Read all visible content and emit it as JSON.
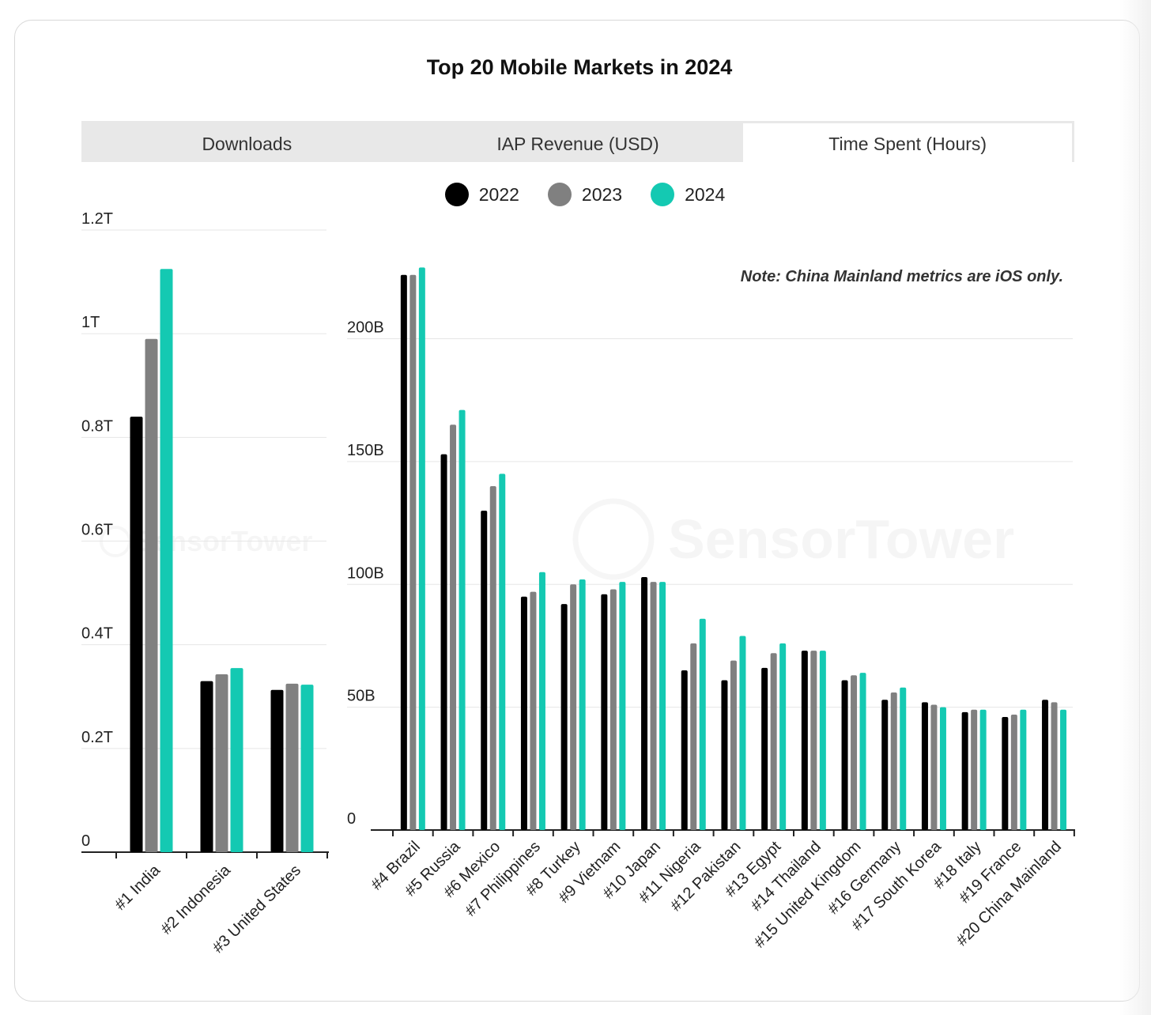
{
  "title": "Top 20 Mobile Markets in 2024",
  "tabs": [
    {
      "label": "Downloads",
      "active": false
    },
    {
      "label": "IAP Revenue (USD)",
      "active": false
    },
    {
      "label": "Time Spent (Hours)",
      "active": true
    }
  ],
  "legend": [
    {
      "label": "2022",
      "color": "#000000"
    },
    {
      "label": "2023",
      "color": "#808080"
    },
    {
      "label": "2024",
      "color": "#14c9b2"
    }
  ],
  "note": "Note: China Mainland metrics are iOS only.",
  "watermark": "SensorTower",
  "chart_data": [
    {
      "type": "bar",
      "title": "Top 20 Mobile Markets in 2024",
      "metric": "Time Spent (Hours)",
      "ylim": [
        0,
        1200000000000
      ],
      "yticks": [
        0,
        200000000000,
        400000000000,
        600000000000,
        800000000000,
        1000000000000,
        1200000000000
      ],
      "ytick_labels": [
        "0",
        "0.2T",
        "0.4T",
        "0.6T",
        "0.8T",
        "1T",
        "1.2T"
      ],
      "categories": [
        "#1 India",
        "#2 Indonesia",
        "#3 United States"
      ],
      "series": [
        {
          "name": "2022",
          "values": [
            840000000000,
            330000000000,
            313000000000
          ]
        },
        {
          "name": "2023",
          "values": [
            990000000000,
            343000000000,
            325000000000
          ]
        },
        {
          "name": "2024",
          "values": [
            1125000000000,
            355000000000,
            323000000000
          ]
        }
      ]
    },
    {
      "type": "bar",
      "metric": "Time Spent (Hours)",
      "ylim": [
        0,
        230000000000
      ],
      "yticks": [
        0,
        50000000000,
        100000000000,
        150000000000,
        200000000000
      ],
      "ytick_labels": [
        "0",
        "50B",
        "100B",
        "150B",
        "200B"
      ],
      "categories": [
        "#4 Brazil",
        "#5 Russia",
        "#6 Mexico",
        "#7 Philippines",
        "#8 Turkey",
        "#9 Vietnam",
        "#10 Japan",
        "#11 Nigeria",
        "#12 Pakistan",
        "#13 Egypt",
        "#14 Thailand",
        "#15 United Kingdom",
        "#16 Germany",
        "#17 South Korea",
        "#18 Italy",
        "#19 France",
        "#20 China Mainland"
      ],
      "series": [
        {
          "name": "2022",
          "values": [
            226000000000,
            153000000000,
            130000000000,
            95000000000,
            92000000000,
            96000000000,
            103000000000,
            65000000000,
            61000000000,
            66000000000,
            73000000000,
            61000000000,
            53000000000,
            52000000000,
            48000000000,
            46000000000,
            53000000000
          ]
        },
        {
          "name": "2023",
          "values": [
            226000000000,
            165000000000,
            140000000000,
            97000000000,
            100000000000,
            98000000000,
            101000000000,
            76000000000,
            69000000000,
            72000000000,
            73000000000,
            63000000000,
            56000000000,
            51000000000,
            49000000000,
            47000000000,
            52000000000
          ]
        },
        {
          "name": "2024",
          "values": [
            229000000000,
            171000000000,
            145000000000,
            105000000000,
            102000000000,
            101000000000,
            101000000000,
            86000000000,
            79000000000,
            76000000000,
            73000000000,
            64000000000,
            58000000000,
            50000000000,
            49000000000,
            49000000000,
            49000000000
          ]
        }
      ]
    }
  ]
}
